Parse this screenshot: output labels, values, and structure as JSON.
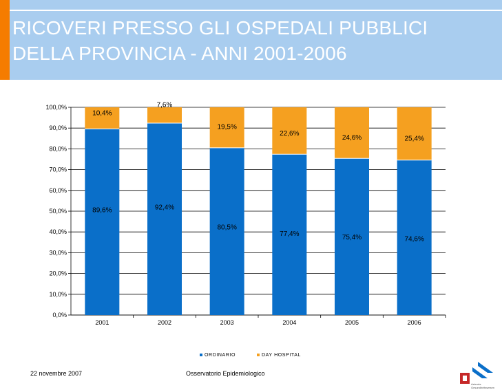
{
  "header": {
    "title": "RICOVERI PRESSO GLI OSPEDALI PUBBLICI\nDELLA PROVINCIA - ANNI 2001-2006"
  },
  "colors": {
    "header_bg": "#a9cdef",
    "accent": "#f57c00",
    "ordinario": "#0a6fc9",
    "day_hospital": "#f5a020"
  },
  "chart_data": {
    "type": "bar",
    "stacked": true,
    "percent": true,
    "categories": [
      "2001",
      "2002",
      "2003",
      "2004",
      "2005",
      "2006"
    ],
    "series": [
      {
        "name": "ORDINARIO",
        "values": [
          89.6,
          92.4,
          80.5,
          77.4,
          75.4,
          74.6
        ],
        "labels": [
          "89,6%",
          "92,4%",
          "80,5%",
          "77,4%",
          "75,4%",
          "74,6%"
        ]
      },
      {
        "name": "DAY HOSPITAL",
        "values": [
          10.4,
          7.6,
          19.5,
          22.6,
          24.6,
          25.4
        ],
        "labels": [
          "10,4%",
          "7,6%",
          "19,5%",
          "22,6%",
          "24,6%",
          "25,4%"
        ]
      }
    ],
    "ylim": [
      0,
      100
    ],
    "yticks": [
      0,
      10,
      20,
      30,
      40,
      50,
      60,
      70,
      80,
      90,
      100
    ],
    "ytick_labels": [
      "0,0%",
      "10,0%",
      "20,0%",
      "30,0%",
      "40,0%",
      "50,0%",
      "60,0%",
      "70,0%",
      "80,0%",
      "90,0%",
      "100,0%"
    ],
    "grid": true,
    "legend": "bottom-center",
    "title": "",
    "xlabel": "",
    "ylabel": ""
  },
  "footer": {
    "date": "22 novembre 2007",
    "source": "Osservatorio Epidemiologico"
  },
  "logo": {
    "text": "Azienda Gesundheitswesen"
  }
}
